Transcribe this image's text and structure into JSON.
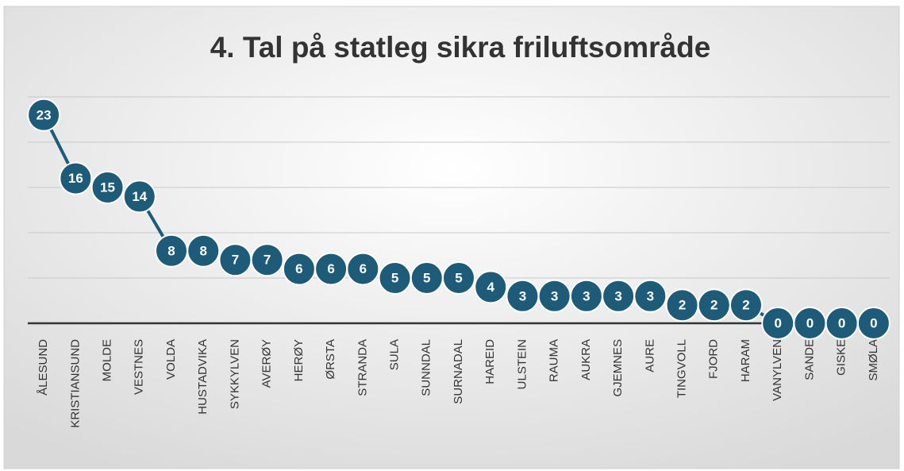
{
  "chart_data": {
    "type": "line",
    "title": "4. Tal på statleg sikra friluftsområde",
    "categories": [
      "ÅLESUND",
      "KRISTIANSUND",
      "MOLDE",
      "VESTNES",
      "VOLDA",
      "HUSTADVIKA",
      "SYKKYLVEN",
      "AVERØY",
      "HERØY",
      "ØRSTA",
      "STRANDA",
      "SULA",
      "SUNNDAL",
      "SURNADAL",
      "HAREID",
      "ULSTEIN",
      "RAUMA",
      "AUKRA",
      "GJEMNES",
      "AURE",
      "TINGVOLL",
      "FJORD",
      "HARAM",
      "VANYLVEN",
      "SANDE",
      "GISKE",
      "SMØLA"
    ],
    "values": [
      23,
      16,
      15,
      14,
      8,
      8,
      7,
      7,
      6,
      6,
      6,
      5,
      5,
      5,
      4,
      3,
      3,
      3,
      3,
      3,
      2,
      2,
      2,
      0,
      0,
      0,
      0
    ],
    "color": "#1d5b79",
    "ylim": [
      0,
      25
    ],
    "yticks": [
      0,
      5,
      10,
      15,
      20,
      25
    ],
    "grid": true
  }
}
